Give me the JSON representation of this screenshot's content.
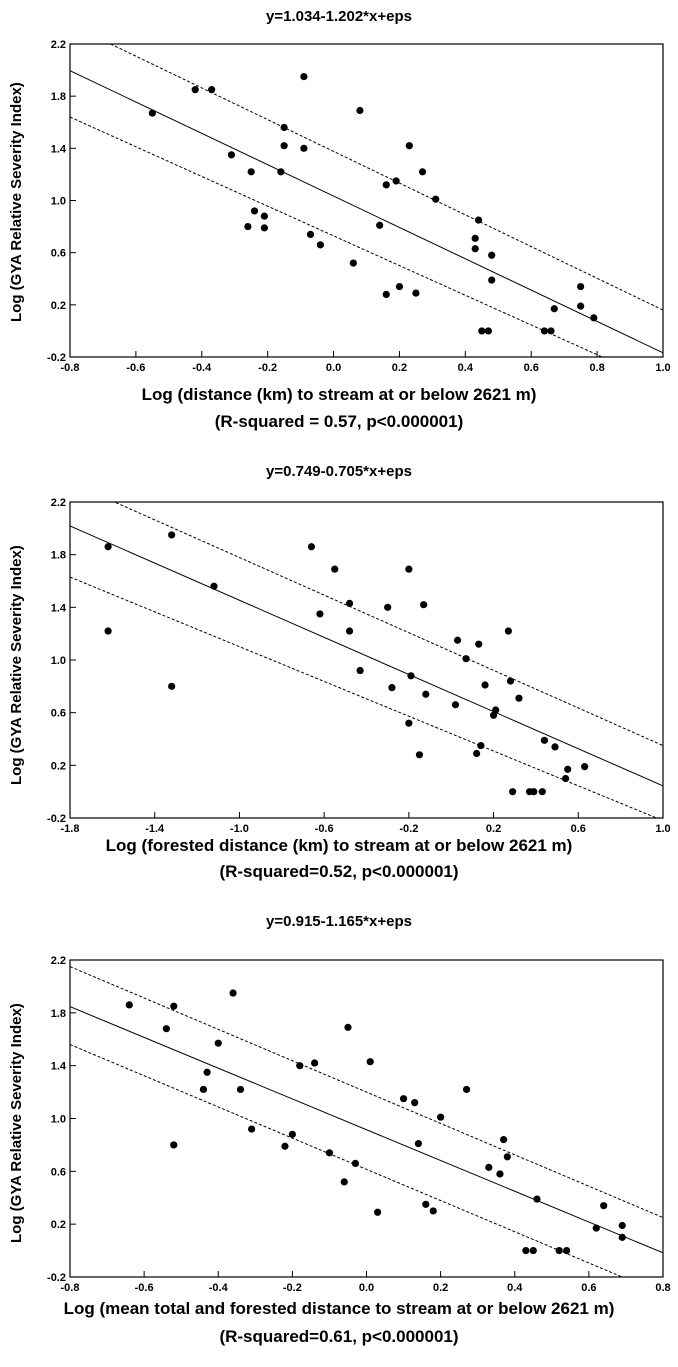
{
  "chart_data": [
    {
      "type": "scatter",
      "title": "y=1.034-1.202*x+eps",
      "xlabel": "Log (distance (km) to stream at or below 2621 m)",
      "note": "(R-squared = 0.57, p<0.000001)",
      "ylabel": "Log (GYA Relative Severity Index)",
      "xlim": [
        -0.8,
        1.0
      ],
      "ylim": [
        -0.2,
        2.2
      ],
      "x_ticks": [
        -0.8,
        -0.6,
        -0.4,
        -0.2,
        0.0,
        0.2,
        0.4,
        0.6,
        0.8,
        1.0
      ],
      "x_tick_labels": [
        "-0.8",
        "-0.6",
        "-0.4",
        "-0.2",
        "0.0",
        "0.2",
        "0.4",
        "0.6",
        "0.8",
        "1.0"
      ],
      "y_ticks": [
        -0.2,
        0.2,
        0.6,
        1.0,
        1.4,
        1.8,
        2.2
      ],
      "y_tick_labels": [
        "-0.2",
        "0.2",
        "0.6",
        "1.0",
        "1.4",
        "1.8",
        "2.2"
      ],
      "grid": false,
      "fit": {
        "intercept": 1.034,
        "slope": -1.202
      },
      "confidence_band": {
        "lower": [
          [
            -0.8,
            1.64
          ],
          [
            1.0,
            -0.41
          ]
        ],
        "upper": [
          [
            -0.8,
            2.35
          ],
          [
            1.0,
            0.16
          ]
        ]
      },
      "points": [
        [
          -0.55,
          1.67
        ],
        [
          -0.42,
          1.85
        ],
        [
          -0.37,
          1.85
        ],
        [
          -0.31,
          1.35
        ],
        [
          -0.26,
          0.8
        ],
        [
          -0.25,
          1.22
        ],
        [
          -0.24,
          0.92
        ],
        [
          -0.21,
          0.88
        ],
        [
          -0.21,
          0.79
        ],
        [
          -0.16,
          1.22
        ],
        [
          -0.15,
          1.56
        ],
        [
          -0.15,
          1.42
        ],
        [
          -0.09,
          1.95
        ],
        [
          -0.09,
          1.4
        ],
        [
          -0.07,
          0.74
        ],
        [
          -0.04,
          0.66
        ],
        [
          0.06,
          0.52
        ],
        [
          0.08,
          1.69
        ],
        [
          0.14,
          0.81
        ],
        [
          0.16,
          1.12
        ],
        [
          0.16,
          0.28
        ],
        [
          0.19,
          1.15
        ],
        [
          0.2,
          0.34
        ],
        [
          0.23,
          1.42
        ],
        [
          0.25,
          0.29
        ],
        [
          0.27,
          1.22
        ],
        [
          0.31,
          1.01
        ],
        [
          0.43,
          0.71
        ],
        [
          0.43,
          0.63
        ],
        [
          0.44,
          0.85
        ],
        [
          0.45,
          0.0
        ],
        [
          0.47,
          0.0
        ],
        [
          0.48,
          0.58
        ],
        [
          0.48,
          0.39
        ],
        [
          0.64,
          0.0
        ],
        [
          0.66,
          0.0
        ],
        [
          0.67,
          0.17
        ],
        [
          0.75,
          0.34
        ],
        [
          0.75,
          0.19
        ],
        [
          0.79,
          0.1
        ]
      ]
    },
    {
      "type": "scatter",
      "title": "y=0.749-0.705*x+eps",
      "xlabel": "Log (forested distance (km) to stream at or below 2621 m)",
      "note": "(R-squared=0.52, p<0.000001)",
      "ylabel": "Log (GYA Relative Severity Index)",
      "xlim": [
        -1.8,
        1.0
      ],
      "ylim": [
        -0.2,
        2.2
      ],
      "x_ticks": [
        -1.8,
        -1.4,
        -1.0,
        -0.6,
        -0.2,
        0.2,
        0.6,
        1.0
      ],
      "x_tick_labels": [
        "-1.8",
        "-1.4",
        "-1.0",
        "-0.6",
        "-0.2",
        "0.2",
        "0.6",
        "1.0"
      ],
      "y_ticks": [
        -0.2,
        0.2,
        0.6,
        1.0,
        1.4,
        1.8,
        2.2
      ],
      "y_tick_labels": [
        "-0.2",
        "0.2",
        "0.6",
        "1.0",
        "1.4",
        "1.8",
        "2.2"
      ],
      "grid": false,
      "fit": {
        "intercept": 0.749,
        "slope": -0.705
      },
      "confidence_band": {
        "lower": [
          [
            -1.8,
            1.63
          ],
          [
            1.0,
            -0.22
          ]
        ],
        "upper": [
          [
            -1.8,
            2.35
          ],
          [
            1.0,
            0.35
          ]
        ]
      },
      "points": [
        [
          -1.62,
          1.86
        ],
        [
          -1.62,
          1.22
        ],
        [
          -1.32,
          1.95
        ],
        [
          -1.32,
          0.8
        ],
        [
          -1.12,
          1.56
        ],
        [
          -0.66,
          1.86
        ],
        [
          -0.62,
          1.35
        ],
        [
          -0.55,
          1.69
        ],
        [
          -0.48,
          1.43
        ],
        [
          -0.48,
          1.22
        ],
        [
          -0.43,
          0.92
        ],
        [
          -0.3,
          1.4
        ],
        [
          -0.28,
          0.79
        ],
        [
          -0.2,
          1.69
        ],
        [
          -0.2,
          0.52
        ],
        [
          -0.19,
          0.88
        ],
        [
          -0.15,
          0.28
        ],
        [
          -0.13,
          1.42
        ],
        [
          -0.12,
          0.74
        ],
        [
          0.02,
          0.66
        ],
        [
          0.03,
          1.15
        ],
        [
          0.07,
          1.01
        ],
        [
          0.12,
          0.29
        ],
        [
          0.13,
          1.12
        ],
        [
          0.14,
          0.35
        ],
        [
          0.16,
          0.81
        ],
        [
          0.2,
          0.58
        ],
        [
          0.21,
          0.62
        ],
        [
          0.27,
          1.22
        ],
        [
          0.28,
          0.84
        ],
        [
          0.29,
          0.0
        ],
        [
          0.32,
          0.71
        ],
        [
          0.37,
          0.0
        ],
        [
          0.39,
          0.0
        ],
        [
          0.43,
          0.0
        ],
        [
          0.44,
          0.39
        ],
        [
          0.49,
          0.34
        ],
        [
          0.54,
          0.1
        ],
        [
          0.55,
          0.17
        ],
        [
          0.63,
          0.19
        ]
      ]
    },
    {
      "type": "scatter",
      "title": "y=0.915-1.165*x+eps",
      "xlabel": "Log (mean total and forested distance to stream at or below 2621 m)",
      "note": "(R-squared=0.61, p<0.000001)",
      "ylabel": "Log (GYA Relative Severity Index)",
      "xlim": [
        -0.8,
        0.8
      ],
      "ylim": [
        -0.2,
        2.2
      ],
      "x_ticks": [
        -0.8,
        -0.6,
        -0.4,
        -0.2,
        0.0,
        0.2,
        0.4,
        0.6,
        0.8
      ],
      "x_tick_labels": [
        "-0.8",
        "-0.6",
        "-0.4",
        "-0.2",
        "0.0",
        "0.2",
        "0.4",
        "0.6",
        "0.8"
      ],
      "y_ticks": [
        -0.2,
        0.2,
        0.6,
        1.0,
        1.4,
        1.8,
        2.2
      ],
      "y_tick_labels": [
        "-0.2",
        "0.2",
        "0.6",
        "1.0",
        "1.4",
        "1.8",
        "2.2"
      ],
      "grid": false,
      "fit": {
        "intercept": 0.915,
        "slope": -1.165
      },
      "confidence_band": {
        "lower": [
          [
            -0.8,
            1.56
          ],
          [
            0.8,
            -0.33
          ]
        ],
        "upper": [
          [
            -0.8,
            2.15
          ],
          [
            0.8,
            0.25
          ]
        ]
      },
      "points": [
        [
          -0.64,
          1.86
        ],
        [
          -0.54,
          1.68
        ],
        [
          -0.52,
          1.85
        ],
        [
          -0.52,
          0.8
        ],
        [
          -0.44,
          1.22
        ],
        [
          -0.43,
          1.35
        ],
        [
          -0.4,
          1.57
        ],
        [
          -0.36,
          1.95
        ],
        [
          -0.34,
          1.22
        ],
        [
          -0.31,
          0.92
        ],
        [
          -0.22,
          0.79
        ],
        [
          -0.2,
          0.88
        ],
        [
          -0.18,
          1.4
        ],
        [
          -0.14,
          1.42
        ],
        [
          -0.1,
          0.74
        ],
        [
          -0.06,
          0.52
        ],
        [
          -0.05,
          1.69
        ],
        [
          -0.03,
          0.66
        ],
        [
          0.01,
          1.43
        ],
        [
          0.03,
          0.29
        ],
        [
          0.1,
          1.15
        ],
        [
          0.13,
          1.12
        ],
        [
          0.14,
          0.81
        ],
        [
          0.16,
          0.35
        ],
        [
          0.18,
          0.3
        ],
        [
          0.2,
          1.01
        ],
        [
          0.27,
          1.22
        ],
        [
          0.33,
          0.63
        ],
        [
          0.36,
          0.58
        ],
        [
          0.37,
          0.84
        ],
        [
          0.38,
          0.71
        ],
        [
          0.43,
          0.0
        ],
        [
          0.45,
          0.0
        ],
        [
          0.46,
          0.39
        ],
        [
          0.52,
          0.0
        ],
        [
          0.54,
          0.0
        ],
        [
          0.62,
          0.17
        ],
        [
          0.64,
          0.34
        ],
        [
          0.69,
          0.19
        ],
        [
          0.69,
          0.1
        ]
      ]
    }
  ]
}
